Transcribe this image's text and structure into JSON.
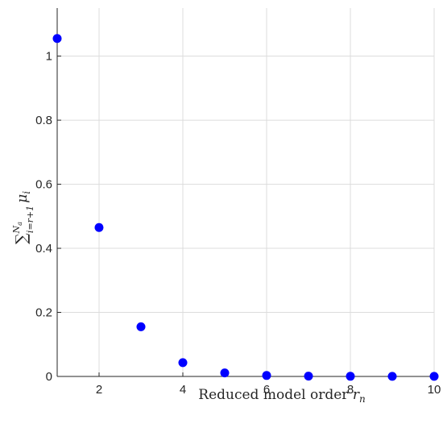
{
  "chart_data": {
    "type": "scatter",
    "x": [
      1,
      2,
      3,
      4,
      5,
      6,
      7,
      8,
      9,
      10
    ],
    "y": [
      1.055,
      0.465,
      0.155,
      0.043,
      0.011,
      0.003,
      0.001,
      0.0005,
      0.0003,
      0.0002
    ],
    "xlabel": {
      "text": "Reduced model order ",
      "var": "r",
      "sub": "n"
    },
    "ylabel": {
      "sum": "∑",
      "sum_sup_base": "N",
      "sum_sup_sub": "a",
      "sum_sub": "i=r+1",
      "var": "μ",
      "var_sub": "i"
    },
    "xlim": [
      1,
      10
    ],
    "ylim": [
      0,
      1.15
    ],
    "xticks": [
      2,
      4,
      6,
      8,
      10
    ],
    "xtick_labels": [
      "2",
      "4",
      "6",
      "8",
      "10"
    ],
    "yticks": [
      0,
      0.2,
      0.4,
      0.6,
      0.8,
      1
    ],
    "ytick_labels": [
      "0",
      "0.2",
      "0.4",
      "0.6",
      "0.8",
      "1"
    ],
    "grid": true,
    "marker_color": "#0000ff",
    "grid_color": "#dcdcdc",
    "axis_color": "#262626"
  }
}
